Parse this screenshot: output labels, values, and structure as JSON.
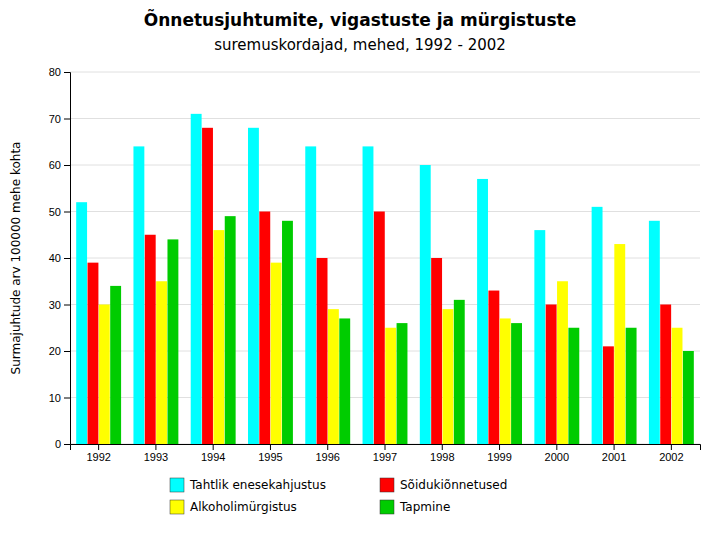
{
  "chart_data": {
    "type": "bar",
    "title": "Õnnetusjuhtumite, vigastuste ja mürgistuste",
    "subtitle": "suremuskordajad, mehed, 1992 - 2002",
    "ylabel": "Surmajuhtude arv 100000 mehe kohta",
    "categories": [
      "1992",
      "1993",
      "1994",
      "1995",
      "1996",
      "1997",
      "1998",
      "1999",
      "2000",
      "2001",
      "2002"
    ],
    "series": [
      {
        "name": "Tahtlik enesekahjustus",
        "color": "#00FFFF",
        "values": [
          52,
          64,
          71,
          68,
          64,
          64,
          60,
          57,
          46,
          51,
          48
        ]
      },
      {
        "name": "Sõidukiõnnetused",
        "color": "#FF0000",
        "values": [
          39,
          45,
          68,
          50,
          40,
          50,
          40,
          33,
          30,
          21,
          30
        ]
      },
      {
        "name": "Alkoholimürgistus",
        "color": "#FFFF00",
        "values": [
          30,
          35,
          46,
          39,
          29,
          25,
          29,
          27,
          35,
          43,
          25
        ]
      },
      {
        "name": "Tapmine",
        "color": "#00CC00",
        "values": [
          34,
          44,
          49,
          48,
          27,
          26,
          31,
          26,
          25,
          25,
          20
        ]
      }
    ],
    "ylim": [
      0,
      80
    ],
    "yticks": [
      0,
      10,
      20,
      30,
      40,
      50,
      60,
      70,
      80
    ],
    "grid": true,
    "legend": "bottom"
  }
}
